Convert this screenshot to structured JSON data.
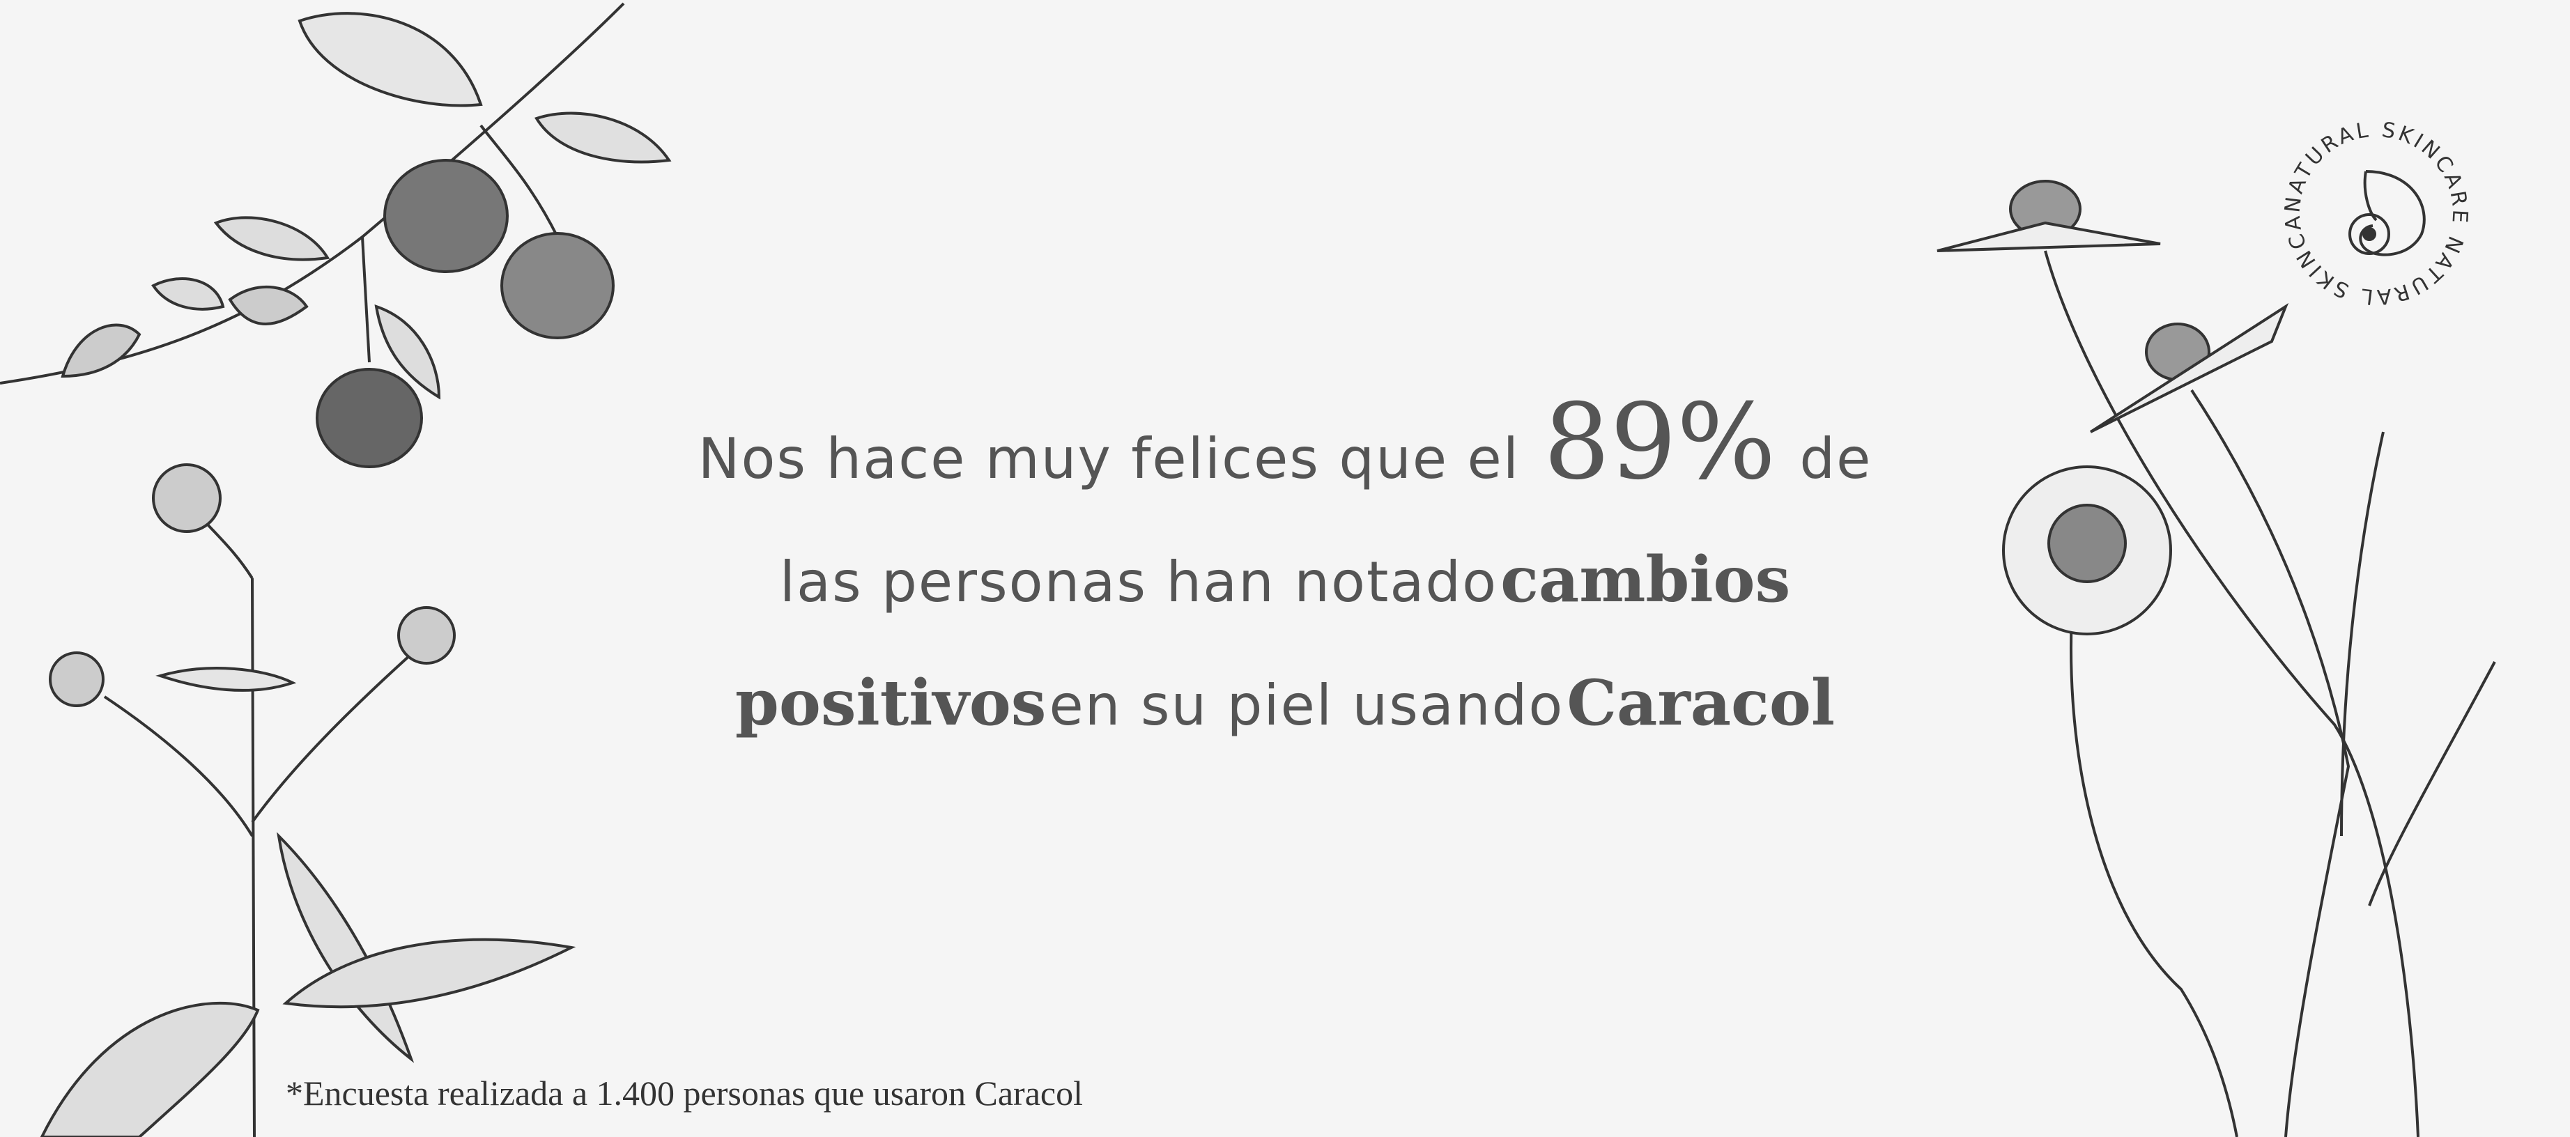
{
  "headline": {
    "line1_pre": "Nos hace muy felices que el",
    "percent": "89%",
    "line1_post": "de",
    "line2_pre": "las personas han notado",
    "line2_bold": "cambios",
    "line3_bold": "positivos",
    "line3_mid": "en su piel usando",
    "line3_brand": "Caracol"
  },
  "footnote": "*Encuesta realizada a 1.400 personas que usaron Caracol",
  "logo": {
    "ring_text": "NATURAL SKINCARE NATURAL SKINCARE",
    "icon": "nautilus-shell-icon"
  },
  "colors": {
    "background": "#f5f5f5",
    "text": "#555555"
  }
}
